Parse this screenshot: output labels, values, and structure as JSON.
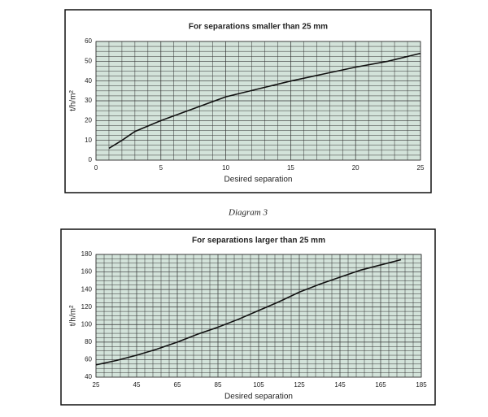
{
  "chart_data": [
    {
      "type": "line",
      "title": "For separations smaller than 25 mm",
      "x_label": "Desired separation",
      "y_label": "t/h/m²",
      "x": [
        1,
        2,
        3,
        5,
        7.5,
        10,
        12.5,
        15,
        17.5,
        20,
        22.5,
        25
      ],
      "values": [
        6,
        10,
        14.5,
        20,
        26,
        32,
        36,
        40,
        43.5,
        47,
        50,
        54
      ],
      "color": "#111111",
      "xlim": [
        0,
        25
      ],
      "xticks": [
        0,
        5,
        10,
        15,
        20,
        25
      ],
      "ylim": [
        0,
        60
      ],
      "yticks": [
        0,
        10,
        20,
        30,
        40,
        50,
        60
      ],
      "grid": true
    },
    {
      "type": "line",
      "title": "For separations larger than 25 mm",
      "x_label": "Desired separation",
      "y_label": "t/h/m²",
      "x": [
        25,
        35,
        45,
        55,
        65,
        75,
        85,
        95,
        105,
        115,
        125,
        135,
        145,
        155,
        165,
        175
      ],
      "values": [
        54,
        59,
        65,
        72,
        80,
        89,
        97,
        106,
        116,
        126,
        137,
        146,
        154,
        162,
        168,
        174
      ],
      "color": "#111111",
      "xlim": [
        25,
        185
      ],
      "xticks": [
        25,
        45,
        65,
        85,
        105,
        125,
        145,
        165,
        185
      ],
      "ylim": [
        40,
        180
      ],
      "yticks": [
        40,
        60,
        80,
        100,
        120,
        140,
        160,
        180
      ],
      "grid": true
    }
  ],
  "caption": "Diagram 3"
}
